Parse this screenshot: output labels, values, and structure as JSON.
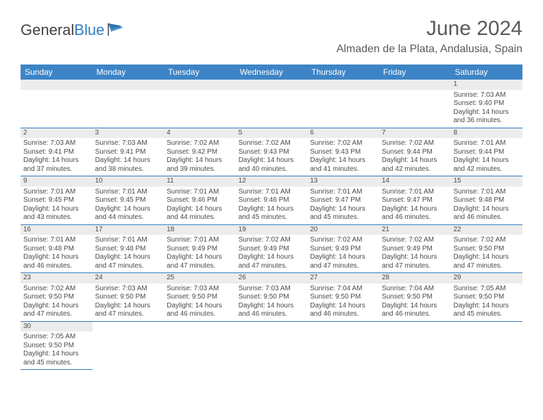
{
  "logo": {
    "text1": "General",
    "text2": "Blue"
  },
  "title": "June 2024",
  "location": "Almaden de la Plata, Andalusia, Spain",
  "colors": {
    "header_bg": "#3d84c6",
    "header_text": "#ffffff",
    "border": "#2f7bbf",
    "daynum_bg": "#ececec",
    "text": "#4a4a4a",
    "title_text": "#5a5a5a"
  },
  "weekdays": [
    "Sunday",
    "Monday",
    "Tuesday",
    "Wednesday",
    "Thursday",
    "Friday",
    "Saturday"
  ],
  "weeks": [
    [
      null,
      null,
      null,
      null,
      null,
      null,
      {
        "n": "1",
        "sr": "Sunrise: 7:03 AM",
        "ss": "Sunset: 9:40 PM",
        "d1": "Daylight: 14 hours",
        "d2": "and 36 minutes."
      }
    ],
    [
      {
        "n": "2",
        "sr": "Sunrise: 7:03 AM",
        "ss": "Sunset: 9:41 PM",
        "d1": "Daylight: 14 hours",
        "d2": "and 37 minutes."
      },
      {
        "n": "3",
        "sr": "Sunrise: 7:03 AM",
        "ss": "Sunset: 9:41 PM",
        "d1": "Daylight: 14 hours",
        "d2": "and 38 minutes."
      },
      {
        "n": "4",
        "sr": "Sunrise: 7:02 AM",
        "ss": "Sunset: 9:42 PM",
        "d1": "Daylight: 14 hours",
        "d2": "and 39 minutes."
      },
      {
        "n": "5",
        "sr": "Sunrise: 7:02 AM",
        "ss": "Sunset: 9:43 PM",
        "d1": "Daylight: 14 hours",
        "d2": "and 40 minutes."
      },
      {
        "n": "6",
        "sr": "Sunrise: 7:02 AM",
        "ss": "Sunset: 9:43 PM",
        "d1": "Daylight: 14 hours",
        "d2": "and 41 minutes."
      },
      {
        "n": "7",
        "sr": "Sunrise: 7:02 AM",
        "ss": "Sunset: 9:44 PM",
        "d1": "Daylight: 14 hours",
        "d2": "and 42 minutes."
      },
      {
        "n": "8",
        "sr": "Sunrise: 7:01 AM",
        "ss": "Sunset: 9:44 PM",
        "d1": "Daylight: 14 hours",
        "d2": "and 42 minutes."
      }
    ],
    [
      {
        "n": "9",
        "sr": "Sunrise: 7:01 AM",
        "ss": "Sunset: 9:45 PM",
        "d1": "Daylight: 14 hours",
        "d2": "and 43 minutes."
      },
      {
        "n": "10",
        "sr": "Sunrise: 7:01 AM",
        "ss": "Sunset: 9:45 PM",
        "d1": "Daylight: 14 hours",
        "d2": "and 44 minutes."
      },
      {
        "n": "11",
        "sr": "Sunrise: 7:01 AM",
        "ss": "Sunset: 9:46 PM",
        "d1": "Daylight: 14 hours",
        "d2": "and 44 minutes."
      },
      {
        "n": "12",
        "sr": "Sunrise: 7:01 AM",
        "ss": "Sunset: 9:46 PM",
        "d1": "Daylight: 14 hours",
        "d2": "and 45 minutes."
      },
      {
        "n": "13",
        "sr": "Sunrise: 7:01 AM",
        "ss": "Sunset: 9:47 PM",
        "d1": "Daylight: 14 hours",
        "d2": "and 45 minutes."
      },
      {
        "n": "14",
        "sr": "Sunrise: 7:01 AM",
        "ss": "Sunset: 9:47 PM",
        "d1": "Daylight: 14 hours",
        "d2": "and 46 minutes."
      },
      {
        "n": "15",
        "sr": "Sunrise: 7:01 AM",
        "ss": "Sunset: 9:48 PM",
        "d1": "Daylight: 14 hours",
        "d2": "and 46 minutes."
      }
    ],
    [
      {
        "n": "16",
        "sr": "Sunrise: 7:01 AM",
        "ss": "Sunset: 9:48 PM",
        "d1": "Daylight: 14 hours",
        "d2": "and 46 minutes."
      },
      {
        "n": "17",
        "sr": "Sunrise: 7:01 AM",
        "ss": "Sunset: 9:48 PM",
        "d1": "Daylight: 14 hours",
        "d2": "and 47 minutes."
      },
      {
        "n": "18",
        "sr": "Sunrise: 7:01 AM",
        "ss": "Sunset: 9:49 PM",
        "d1": "Daylight: 14 hours",
        "d2": "and 47 minutes."
      },
      {
        "n": "19",
        "sr": "Sunrise: 7:02 AM",
        "ss": "Sunset: 9:49 PM",
        "d1": "Daylight: 14 hours",
        "d2": "and 47 minutes."
      },
      {
        "n": "20",
        "sr": "Sunrise: 7:02 AM",
        "ss": "Sunset: 9:49 PM",
        "d1": "Daylight: 14 hours",
        "d2": "and 47 minutes."
      },
      {
        "n": "21",
        "sr": "Sunrise: 7:02 AM",
        "ss": "Sunset: 9:49 PM",
        "d1": "Daylight: 14 hours",
        "d2": "and 47 minutes."
      },
      {
        "n": "22",
        "sr": "Sunrise: 7:02 AM",
        "ss": "Sunset: 9:50 PM",
        "d1": "Daylight: 14 hours",
        "d2": "and 47 minutes."
      }
    ],
    [
      {
        "n": "23",
        "sr": "Sunrise: 7:02 AM",
        "ss": "Sunset: 9:50 PM",
        "d1": "Daylight: 14 hours",
        "d2": "and 47 minutes."
      },
      {
        "n": "24",
        "sr": "Sunrise: 7:03 AM",
        "ss": "Sunset: 9:50 PM",
        "d1": "Daylight: 14 hours",
        "d2": "and 47 minutes."
      },
      {
        "n": "25",
        "sr": "Sunrise: 7:03 AM",
        "ss": "Sunset: 9:50 PM",
        "d1": "Daylight: 14 hours",
        "d2": "and 46 minutes."
      },
      {
        "n": "26",
        "sr": "Sunrise: 7:03 AM",
        "ss": "Sunset: 9:50 PM",
        "d1": "Daylight: 14 hours",
        "d2": "and 46 minutes."
      },
      {
        "n": "27",
        "sr": "Sunrise: 7:04 AM",
        "ss": "Sunset: 9:50 PM",
        "d1": "Daylight: 14 hours",
        "d2": "and 46 minutes."
      },
      {
        "n": "28",
        "sr": "Sunrise: 7:04 AM",
        "ss": "Sunset: 9:50 PM",
        "d1": "Daylight: 14 hours",
        "d2": "and 46 minutes."
      },
      {
        "n": "29",
        "sr": "Sunrise: 7:05 AM",
        "ss": "Sunset: 9:50 PM",
        "d1": "Daylight: 14 hours",
        "d2": "and 45 minutes."
      }
    ],
    [
      {
        "n": "30",
        "sr": "Sunrise: 7:05 AM",
        "ss": "Sunset: 9:50 PM",
        "d1": "Daylight: 14 hours",
        "d2": "and 45 minutes."
      },
      null,
      null,
      null,
      null,
      null,
      null
    ]
  ]
}
